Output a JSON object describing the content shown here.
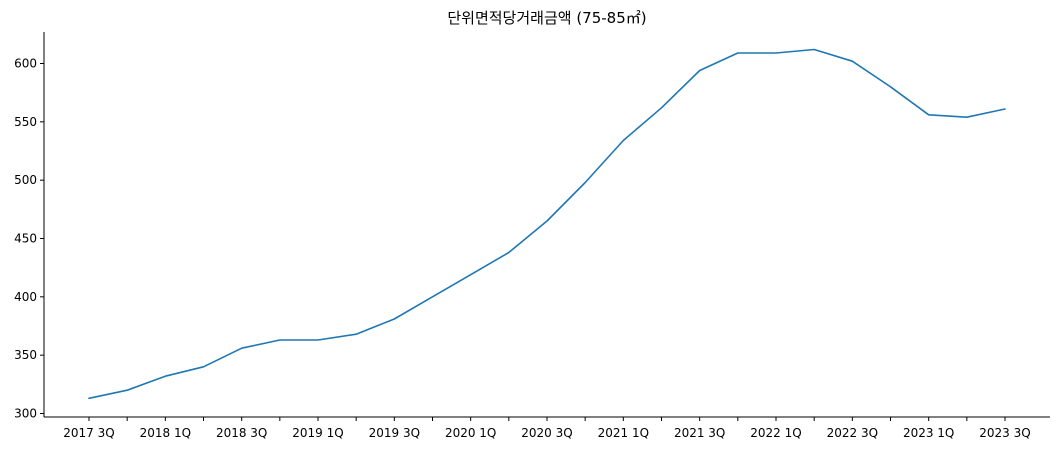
{
  "chart_data": {
    "type": "line",
    "title": "단위면적당거래금액 (75-85㎡)",
    "xlabel": "",
    "ylabel": "",
    "categories": [
      "2017 3Q",
      "2017 4Q",
      "2018 1Q",
      "2018 2Q",
      "2018 3Q",
      "2018 4Q",
      "2019 1Q",
      "2019 2Q",
      "2019 3Q",
      "2019 4Q",
      "2020 1Q",
      "2020 2Q",
      "2020 3Q",
      "2020 4Q",
      "2021 1Q",
      "2021 2Q",
      "2021 3Q",
      "2021 4Q",
      "2022 1Q",
      "2022 2Q",
      "2022 3Q",
      "2022 4Q",
      "2023 1Q",
      "2023 2Q",
      "2023 3Q"
    ],
    "tick_labels": [
      "2017 3Q",
      "2018 1Q",
      "2018 3Q",
      "2019 1Q",
      "2019 3Q",
      "2020 1Q",
      "2020 3Q",
      "2021 1Q",
      "2021 3Q",
      "2022 1Q",
      "2022 3Q",
      "2023 1Q",
      "2023 3Q"
    ],
    "series": [
      {
        "color": "#1f77b4",
        "values": [
          313,
          320,
          332,
          340,
          356,
          363,
          363,
          368,
          381,
          400,
          419,
          438,
          465,
          498,
          534,
          562,
          594,
          609,
          609,
          612,
          602,
          580,
          556,
          554,
          561
        ]
      }
    ],
    "ylim": [
      297,
      627
    ],
    "yticks": [
      300,
      350,
      400,
      450,
      500,
      550,
      600
    ],
    "grid": false,
    "spines": [
      "left",
      "bottom"
    ]
  }
}
